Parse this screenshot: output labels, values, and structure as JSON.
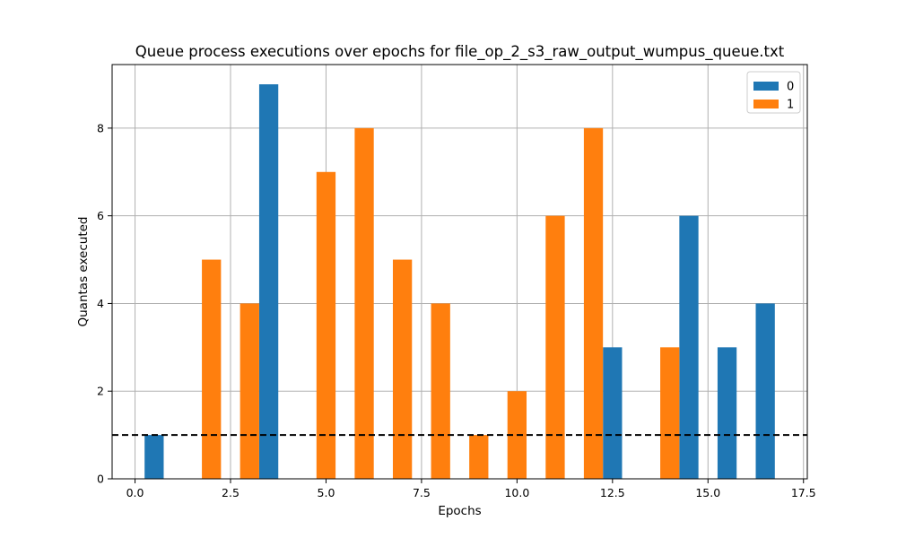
{
  "chart_data": {
    "type": "bar",
    "title": "Queue process executions over epochs for file_op_2_s3_raw_output_wumpus_queue.txt",
    "xlabel": "Epochs",
    "ylabel": "Quantas executed",
    "xlim": [
      -0.6,
      17.6
    ],
    "ylim": [
      0,
      9.45
    ],
    "xticks": [
      0.0,
      2.5,
      5.0,
      7.5,
      10.0,
      12.5,
      15.0,
      17.5
    ],
    "xtick_labels": [
      "0.0",
      "2.5",
      "5.0",
      "7.5",
      "10.0",
      "12.5",
      "15.0",
      "17.5"
    ],
    "yticks": [
      0,
      2,
      4,
      6,
      8
    ],
    "ytick_labels": [
      "0",
      "2",
      "4",
      "6",
      "8"
    ],
    "grid": true,
    "legend_position": "top-right",
    "bar_width": 0.5,
    "series": [
      {
        "name": "0",
        "color": "#1f77b4",
        "x": [
          0.5,
          3.5,
          12.5,
          14.5,
          15.5,
          16.5
        ],
        "values": [
          1,
          9,
          3,
          6,
          3,
          4
        ]
      },
      {
        "name": "1",
        "color": "#ff7f0e",
        "x": [
          2,
          3,
          5,
          6,
          7,
          8,
          9,
          10,
          11,
          12,
          14
        ],
        "values": [
          5,
          4,
          7,
          8,
          5,
          4,
          1,
          2,
          6,
          8,
          3
        ]
      }
    ],
    "reference_line": {
      "y": 1,
      "style": "dashed",
      "color": "#000000"
    }
  }
}
